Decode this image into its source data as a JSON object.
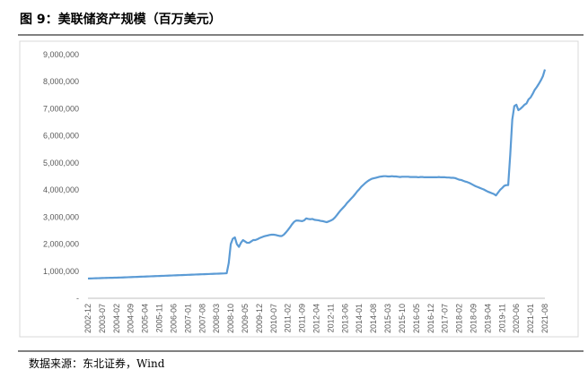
{
  "chart_data": {
    "type": "line",
    "title": "图 9：美联储资产规模（百万美元）",
    "source": "数据来源：东北证券，Wind",
    "categories": [
      "2002-12",
      null,
      null,
      null,
      null,
      null,
      null,
      "2003-07",
      null,
      null,
      null,
      null,
      null,
      null,
      "2004-02",
      null,
      null,
      null,
      null,
      null,
      null,
      "2004-09",
      null,
      null,
      null,
      null,
      null,
      null,
      "2005-04",
      null,
      null,
      null,
      null,
      null,
      null,
      "2005-11",
      null,
      null,
      null,
      null,
      null,
      null,
      "2006-06",
      null,
      null,
      null,
      null,
      null,
      null,
      "2007-01",
      null,
      null,
      null,
      null,
      null,
      null,
      "2007-08",
      null,
      null,
      null,
      null,
      null,
      null,
      "2008-03",
      null,
      null,
      null,
      null,
      null,
      null,
      "2008-10",
      null,
      null,
      null,
      null,
      null,
      null,
      "2009-05",
      null,
      null,
      null,
      null,
      null,
      null,
      "2009-12",
      null,
      null,
      null,
      null,
      null,
      null,
      "2010-07",
      null,
      null,
      null,
      null,
      null,
      null,
      "2011-02",
      null,
      null,
      null,
      null,
      null,
      null,
      "2011-09",
      null,
      null,
      null,
      null,
      null,
      null,
      "2012-04",
      null,
      null,
      null,
      null,
      null,
      null,
      "2012-11",
      null,
      null,
      null,
      null,
      null,
      null,
      "2013-06",
      null,
      null,
      null,
      null,
      null,
      null,
      "2014-01",
      null,
      null,
      null,
      null,
      null,
      null,
      "2014-08",
      null,
      null,
      null,
      null,
      null,
      null,
      "2015-03",
      null,
      null,
      null,
      null,
      null,
      null,
      "2015-10",
      null,
      null,
      null,
      null,
      null,
      null,
      "2016-05",
      null,
      null,
      null,
      null,
      null,
      null,
      "2016-12",
      null,
      null,
      null,
      null,
      null,
      null,
      "2017-07",
      null,
      null,
      null,
      null,
      null,
      null,
      "2018-02",
      null,
      null,
      null,
      null,
      null,
      null,
      "2018-09",
      null,
      null,
      null,
      null,
      null,
      null,
      "2019-04",
      null,
      null,
      null,
      null,
      null,
      null,
      "2019-11",
      null,
      null,
      null,
      null,
      null,
      null,
      "2020-06",
      null,
      null,
      null,
      null,
      null,
      null,
      "2021-01",
      null,
      null,
      null,
      null,
      null,
      null,
      "2021-08"
    ],
    "series": [
      {
        "color": "#5b9bd5",
        "values": [
          730000,
          732000,
          735000,
          738000,
          740000,
          742000,
          745000,
          748000,
          750000,
          752000,
          754000,
          756000,
          758000,
          760000,
          762000,
          765000,
          768000,
          770000,
          773000,
          776000,
          779000,
          782000,
          785000,
          788000,
          791000,
          794000,
          797000,
          800000,
          803000,
          806000,
          809000,
          812000,
          815000,
          818000,
          821000,
          824000,
          827000,
          830000,
          833000,
          836000,
          839000,
          842000,
          845000,
          848000,
          851000,
          854000,
          857000,
          860000,
          863000,
          866000,
          869000,
          872000,
          875000,
          878000,
          881000,
          884000,
          887000,
          890000,
          893000,
          896000,
          899000,
          902000,
          905000,
          908000,
          911000,
          914000,
          917000,
          920000,
          925000,
          1300000,
          2000000,
          2200000,
          2250000,
          2000000,
          1900000,
          2050000,
          2150000,
          2100000,
          2050000,
          2050000,
          2100000,
          2150000,
          2150000,
          2180000,
          2220000,
          2250000,
          2280000,
          2300000,
          2320000,
          2340000,
          2350000,
          2350000,
          2340000,
          2320000,
          2300000,
          2300000,
          2350000,
          2430000,
          2520000,
          2620000,
          2730000,
          2820000,
          2870000,
          2870000,
          2860000,
          2850000,
          2880000,
          2950000,
          2930000,
          2920000,
          2930000,
          2900000,
          2890000,
          2880000,
          2860000,
          2850000,
          2830000,
          2810000,
          2840000,
          2870000,
          2910000,
          2980000,
          3070000,
          3170000,
          3260000,
          3340000,
          3420000,
          3520000,
          3600000,
          3680000,
          3760000,
          3850000,
          3950000,
          4030000,
          4120000,
          4190000,
          4260000,
          4320000,
          4370000,
          4410000,
          4430000,
          4450000,
          4470000,
          4490000,
          4500000,
          4510000,
          4510000,
          4500000,
          4500000,
          4510000,
          4500000,
          4500000,
          4490000,
          4480000,
          4490000,
          4490000,
          4490000,
          4490000,
          4480000,
          4480000,
          4480000,
          4480000,
          4470000,
          4480000,
          4480000,
          4470000,
          4470000,
          4470000,
          4470000,
          4470000,
          4470000,
          4470000,
          4480000,
          4470000,
          4470000,
          4470000,
          4460000,
          4460000,
          4450000,
          4450000,
          4440000,
          4410000,
          4380000,
          4370000,
          4340000,
          4310000,
          4290000,
          4260000,
          4220000,
          4180000,
          4140000,
          4110000,
          4080000,
          4050000,
          4020000,
          3980000,
          3940000,
          3910000,
          3880000,
          3850000,
          3800000,
          3900000,
          4000000,
          4070000,
          4150000,
          4180000,
          4180000,
          5300000,
          6600000,
          7100000,
          7150000,
          6950000,
          7000000,
          7070000,
          7150000,
          7200000,
          7350000,
          7420000,
          7550000,
          7700000,
          7800000,
          7920000,
          8050000,
          8200000,
          8450000
        ]
      }
    ],
    "ylim": [
      0,
      9000000
    ],
    "yticks": [
      {
        "value": 0,
        "label": "-"
      },
      {
        "value": 1000000,
        "label": "1,000,000"
      },
      {
        "value": 2000000,
        "label": "2,000,000"
      },
      {
        "value": 3000000,
        "label": "3,000,000"
      },
      {
        "value": 4000000,
        "label": "4,000,000"
      },
      {
        "value": 5000000,
        "label": "5,000,000"
      },
      {
        "value": 6000000,
        "label": "6,000,000"
      },
      {
        "value": 7000000,
        "label": "7,000,000"
      },
      {
        "value": 8000000,
        "label": "8,000,000"
      },
      {
        "value": 9000000,
        "label": "9,000,000"
      }
    ],
    "grid": false
  }
}
